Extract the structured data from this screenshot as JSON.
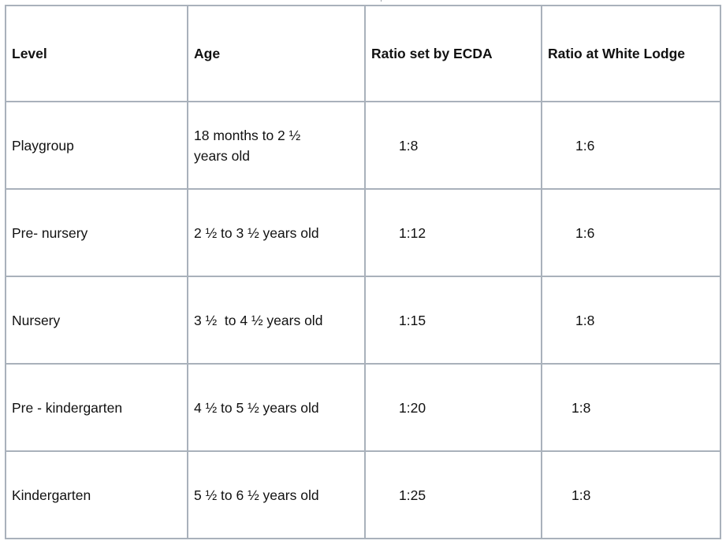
{
  "table": {
    "headers": [
      "Level",
      "Age",
      "Ratio set by ECDA",
      "Ratio at White Lodge"
    ],
    "rows": [
      {
        "level": "Playgroup",
        "age": "18 months to  2 ½ years old",
        "ecda": "1:8",
        "white_lodge": "1:6"
      },
      {
        "level": "Pre- nursery",
        "age": "2 ½ to 3 ½ years old",
        "ecda": "1:12",
        "white_lodge": "1:6"
      },
      {
        "level": "Nursery",
        "age": "3 ½  to 4 ½ years old",
        "ecda": "1:15",
        "white_lodge": "1:8"
      },
      {
        "level": "Pre - kindergarten",
        "age": "4 ½ to 5 ½ years old",
        "ecda": "1:20",
        "white_lodge": "1:8"
      },
      {
        "level": "Kindergarten",
        "age": "5 ½ to 6 ½ years old",
        "ecda": "1:25",
        "white_lodge": "1:8"
      }
    ]
  }
}
